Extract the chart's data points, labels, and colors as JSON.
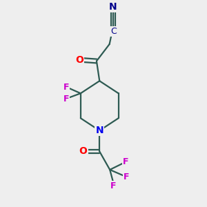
{
  "background_color": "#eeeeee",
  "bond_color": "#2d5a52",
  "atom_colors": {
    "N_cyan": "#00008b",
    "C": "#2d2d2d",
    "O": "#ff0000",
    "F": "#cc00cc",
    "N_ring": "#0000ee"
  },
  "figsize": [
    3.0,
    3.0
  ],
  "dpi": 100
}
